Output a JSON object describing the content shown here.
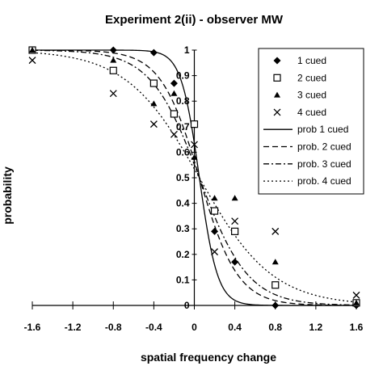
{
  "chart_data": {
    "type": "scatter",
    "title": "Experiment 2(ii) - observer MW",
    "xlabel": "spatial frequency change",
    "ylabel": "probability",
    "xlim": [
      -1.6,
      1.6
    ],
    "ylim": [
      0,
      1
    ],
    "x_ticks": [
      "-1.6",
      "-1.2",
      "-0.8",
      "-0.4",
      "0",
      "0.4",
      "0.8",
      "1.2",
      "1.6"
    ],
    "y_ticks": [
      "0",
      "0.1",
      "0.2",
      "0.3",
      "0.4",
      "0.5",
      "0.6",
      "0.7",
      "0.8",
      "0.9",
      "1"
    ],
    "legend_position": "top-right",
    "grid": false,
    "series": [
      {
        "name": "1 cued",
        "kind": "points",
        "marker": "diamond",
        "points": [
          [
            -1.6,
            1.0
          ],
          [
            -0.8,
            1.0
          ],
          [
            -0.4,
            0.99
          ],
          [
            -0.2,
            0.87
          ],
          [
            0.0,
            0.71
          ],
          [
            0.2,
            0.29
          ],
          [
            0.4,
            0.17
          ],
          [
            0.8,
            0.0
          ],
          [
            1.6,
            0.0
          ]
        ]
      },
      {
        "name": "2 cued",
        "kind": "points",
        "marker": "square",
        "points": [
          [
            -1.6,
            1.0
          ],
          [
            -0.8,
            0.92
          ],
          [
            -0.4,
            0.87
          ],
          [
            -0.2,
            0.75
          ],
          [
            0.0,
            0.71
          ],
          [
            0.2,
            0.37
          ],
          [
            0.4,
            0.29
          ],
          [
            0.8,
            0.08
          ],
          [
            1.6,
            0.01
          ]
        ]
      },
      {
        "name": "3 cued",
        "kind": "points",
        "marker": "triangle",
        "points": [
          [
            -1.6,
            1.0
          ],
          [
            -0.8,
            0.96
          ],
          [
            -0.4,
            0.79
          ],
          [
            -0.2,
            0.83
          ],
          [
            0.0,
            0.58
          ],
          [
            0.2,
            0.42
          ],
          [
            0.4,
            0.42
          ],
          [
            0.8,
            0.17
          ],
          [
            1.6,
            0.01
          ]
        ]
      },
      {
        "name": "4 cued",
        "kind": "points",
        "marker": "x",
        "points": [
          [
            -1.6,
            0.96
          ],
          [
            -0.8,
            0.83
          ],
          [
            -0.4,
            0.71
          ],
          [
            -0.2,
            0.67
          ],
          [
            0.0,
            0.63
          ],
          [
            0.2,
            0.21
          ],
          [
            0.4,
            0.33
          ],
          [
            0.8,
            0.29
          ],
          [
            1.6,
            0.04
          ]
        ]
      },
      {
        "name": "prob 1 cued",
        "kind": "curve",
        "dash": "solid",
        "mu": 0.05,
        "s": 0.09
      },
      {
        "name": "prob. 2 cued",
        "kind": "curve",
        "dash": "dash",
        "mu": 0.05,
        "s": 0.19
      },
      {
        "name": "prob. 3 cued",
        "kind": "curve",
        "dash": "dashdot",
        "mu": 0.05,
        "s": 0.24
      },
      {
        "name": "prob. 4 cued",
        "kind": "curve",
        "dash": "dot",
        "mu": 0.05,
        "s": 0.36
      }
    ]
  }
}
